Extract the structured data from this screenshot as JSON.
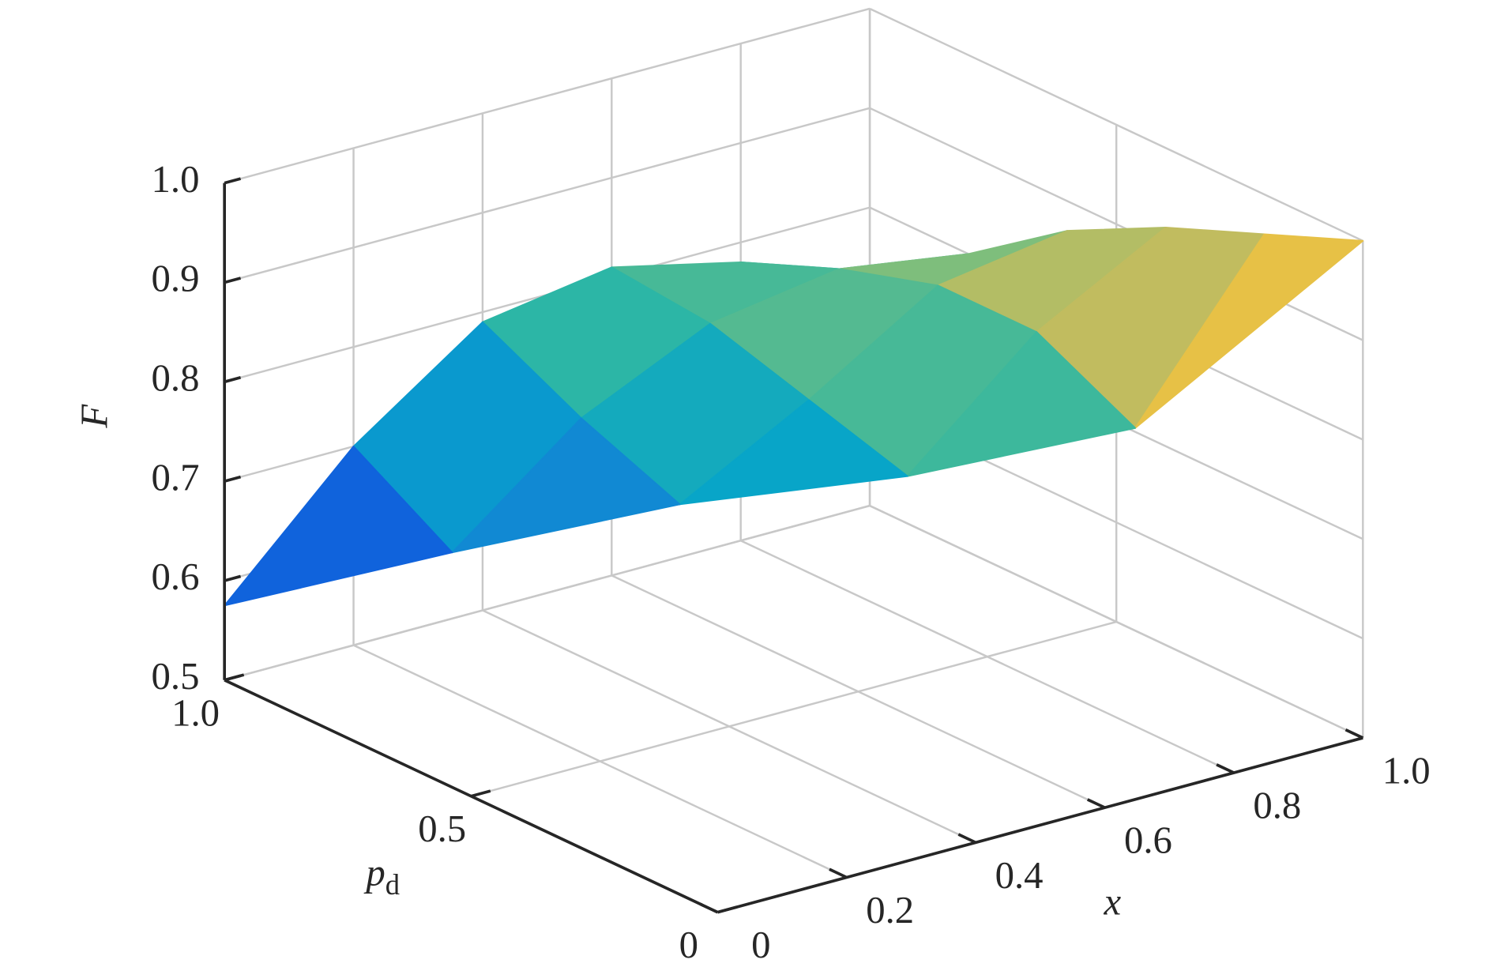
{
  "chart_data": {
    "type": "surface",
    "x": [
      0,
      0.2,
      0.4,
      0.6,
      0.8,
      1
    ],
    "y": [
      0,
      0.2,
      0.4,
      0.6,
      0.8,
      1
    ],
    "z": [
      [
        null,
        null,
        null,
        null,
        null,
        1.0
      ],
      [
        null,
        null,
        null,
        null,
        0.8,
        0.96
      ],
      [
        null,
        null,
        null,
        0.74,
        0.85,
        0.92
      ],
      [
        null,
        null,
        0.7,
        0.77,
        0.85,
        0.87
      ],
      [
        null,
        0.64,
        0.74,
        0.8,
        0.82,
        0.8
      ],
      [
        0.575,
        0.7,
        0.79,
        0.81,
        0.78,
        0.72
      ]
    ],
    "xlim": [
      0,
      1
    ],
    "ylim": [
      0,
      1
    ],
    "zlim": [
      0.5,
      1
    ],
    "xticks": [
      0,
      0.2,
      0.4,
      0.6,
      0.8,
      {
        "value": 1,
        "label": "1.0"
      }
    ],
    "yticks": [
      0,
      0.5,
      {
        "value": 1,
        "label": "1.0"
      }
    ],
    "zticks": [
      0.5,
      0.6,
      0.7,
      0.8,
      0.9,
      {
        "value": 1,
        "label": "1.0"
      }
    ],
    "x_label": "x",
    "y_label": "p",
    "y_label_subscript": "d",
    "z_label": "F",
    "grid": true,
    "colormap": "parula"
  }
}
